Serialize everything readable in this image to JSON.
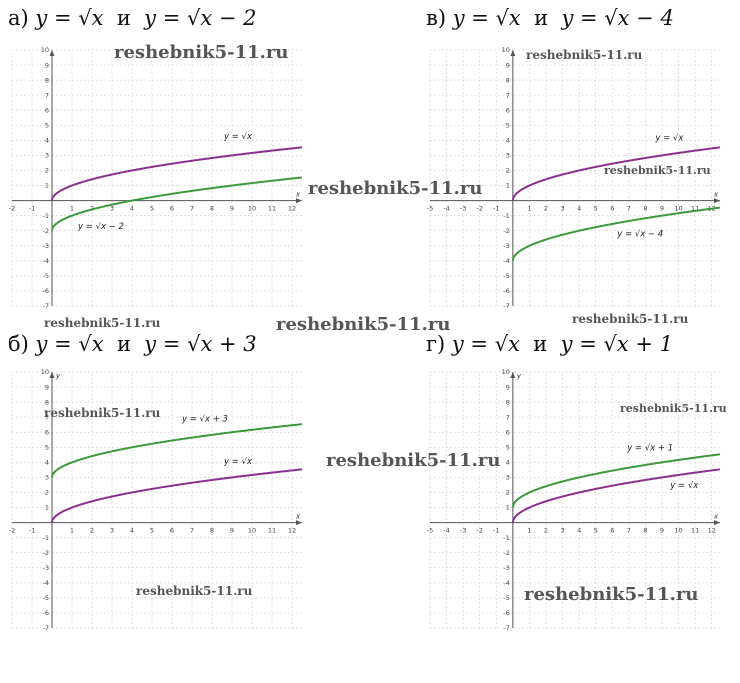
{
  "panels": [
    {
      "letter": "а)",
      "eq1": "y = √x",
      "conj": "и",
      "eq2": "y = √x − 2"
    },
    {
      "letter": "в)",
      "eq1": "y = √x",
      "conj": "и",
      "eq2": "y = √x − 4"
    },
    {
      "letter": "б)",
      "eq1": "y = √x",
      "conj": "и",
      "eq2": "y = √x + 3"
    },
    {
      "letter": "г)",
      "eq1": "y = √x",
      "conj": "и",
      "eq2": "y = √x + 1"
    }
  ],
  "watermarks": [
    "reshebnik5-11.ru",
    "reshebnik5-11.ru",
    "reshebnik5-11.ru",
    "reshebnik5-11.ru",
    "reshebnik5-11.ru",
    "reshebnik5-11.ru",
    "reshebnik5-11.ru",
    "reshebnik5-11.ru",
    "reshebnik5-11.ru"
  ],
  "colors": {
    "base_curve": "#8b2f8f",
    "shifted_curve": "#3c9a3a",
    "axis": "#555555",
    "grid": "#cccccc"
  },
  "chart_data": [
    {
      "type": "line",
      "panel": "а)",
      "xlim": [
        -2,
        12.5
      ],
      "ylim": [
        -7,
        10
      ],
      "grid": true,
      "xaxis_label": "x",
      "yaxis_label": "",
      "x_ticks": [
        -2,
        -1,
        1,
        2,
        3,
        4,
        5,
        6,
        7,
        8,
        9,
        10,
        11,
        12
      ],
      "y_ticks": [
        -7,
        -6,
        -5,
        -4,
        -3,
        -2,
        -1,
        1,
        2,
        3,
        4,
        5,
        6,
        7,
        8,
        9,
        10
      ],
      "series": [
        {
          "name": "y = √x",
          "shift": 0,
          "role": "base",
          "label_at": [
            8.6,
            4.1
          ]
        },
        {
          "name": "y = √x − 2",
          "shift": -2,
          "role": "shifted",
          "label_at": [
            1.3,
            -1.9
          ]
        }
      ]
    },
    {
      "type": "line",
      "panel": "в)",
      "xlim": [
        -5,
        12.5
      ],
      "ylim": [
        -7,
        10
      ],
      "grid": true,
      "xaxis_label": "x",
      "yaxis_label": "",
      "x_ticks": [
        -5,
        -4,
        -3,
        -2,
        -1,
        1,
        2,
        3,
        4,
        5,
        6,
        7,
        8,
        9,
        10,
        11,
        12
      ],
      "y_ticks": [
        -7,
        -6,
        -5,
        -4,
        -3,
        -2,
        -1,
        1,
        2,
        3,
        4,
        5,
        6,
        7,
        8,
        9,
        10
      ],
      "series": [
        {
          "name": "y = √x",
          "shift": 0,
          "role": "base",
          "label_at": [
            8.6,
            4.0
          ]
        },
        {
          "name": "y = √x − 4",
          "shift": -4,
          "role": "shifted",
          "label_at": [
            6.3,
            -2.4
          ]
        }
      ]
    },
    {
      "type": "line",
      "panel": "б)",
      "xlim": [
        -2,
        12.5
      ],
      "ylim": [
        -7,
        10
      ],
      "grid": true,
      "xaxis_label": "x",
      "yaxis_label": "y",
      "x_ticks": [
        -2,
        -1,
        1,
        2,
        3,
        4,
        5,
        6,
        7,
        8,
        9,
        10,
        11,
        12
      ],
      "y_ticks": [
        -7,
        -6,
        -5,
        -4,
        -3,
        -2,
        -1,
        1,
        2,
        3,
        4,
        5,
        6,
        7,
        8,
        9,
        10
      ],
      "series": [
        {
          "name": "y = √x",
          "shift": 0,
          "role": "base",
          "label_at": [
            8.6,
            3.9
          ]
        },
        {
          "name": "y = √x + 3",
          "shift": 3,
          "role": "shifted",
          "label_at": [
            6.5,
            6.7
          ]
        }
      ]
    },
    {
      "type": "line",
      "panel": "г)",
      "xlim": [
        -5,
        12.5
      ],
      "ylim": [
        -7,
        10
      ],
      "grid": true,
      "xaxis_label": "x",
      "yaxis_label": "y",
      "x_ticks": [
        -5,
        -4,
        -3,
        -2,
        -1,
        1,
        2,
        3,
        4,
        5,
        6,
        7,
        8,
        9,
        10,
        11,
        12
      ],
      "y_ticks": [
        -7,
        -6,
        -5,
        -4,
        -3,
        -2,
        -1,
        1,
        2,
        3,
        4,
        5,
        6,
        7,
        8,
        9,
        10
      ],
      "series": [
        {
          "name": "y = √x",
          "shift": 0,
          "role": "base",
          "label_at": [
            9.5,
            2.3
          ]
        },
        {
          "name": "y = √x + 1",
          "shift": 1,
          "role": "shifted",
          "label_at": [
            6.9,
            4.8
          ]
        }
      ]
    }
  ]
}
